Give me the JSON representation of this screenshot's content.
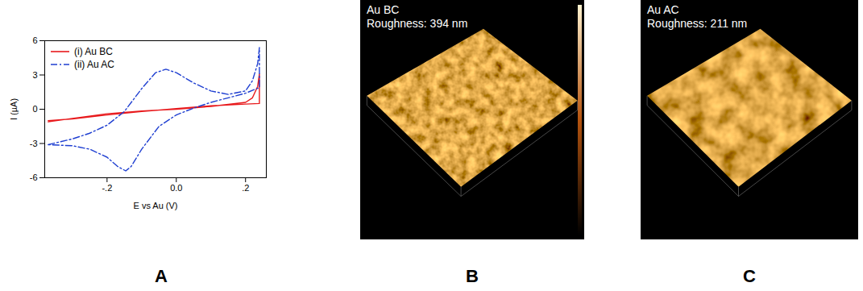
{
  "chart_data": {
    "type": "line",
    "xlabel": "E vs Au (V)",
    "ylabel": "I (µA)",
    "xlim": [
      -0.38,
      0.26
    ],
    "xticks": [
      {
        "value": -0.2,
        "label": "-.2"
      },
      {
        "value": 0,
        "label": "0.0"
      },
      {
        "value": 0.2,
        "label": ".2"
      }
    ],
    "ylim": [
      -6,
      6
    ],
    "yticks": [
      -6,
      -3,
      0,
      3,
      6
    ],
    "legend": "upper left",
    "series": [
      {
        "name": "(i) Au BC",
        "color": "#e8191c",
        "line_style": "solid",
        "x": [
          -0.37,
          -0.3,
          -0.2,
          -0.1,
          0.0,
          0.1,
          0.2,
          0.22,
          0.235,
          0.24,
          0.24,
          0.2,
          0.1,
          0.0,
          -0.1,
          -0.2,
          -0.3,
          -0.37
        ],
        "values": [
          -1.1,
          -0.8,
          -0.4,
          -0.15,
          0.0,
          0.25,
          0.6,
          1.0,
          2.0,
          3.1,
          0.5,
          0.45,
          0.3,
          0.05,
          -0.2,
          -0.5,
          -0.85,
          -1.0
        ]
      },
      {
        "name": "(ii) Au AC",
        "color": "#1f3fd1",
        "line_style": "dashdot",
        "x": [
          -0.37,
          -0.3,
          -0.25,
          -0.2,
          -0.15,
          -0.1,
          -0.06,
          -0.03,
          0.0,
          0.05,
          0.1,
          0.15,
          0.2,
          0.22,
          0.235,
          0.24,
          0.24,
          0.2,
          0.15,
          0.1,
          0.05,
          0.0,
          -0.05,
          -0.1,
          -0.13,
          -0.146,
          -0.17,
          -0.2,
          -0.25,
          -0.3,
          -0.37
        ],
        "values": [
          -3.1,
          -2.6,
          -2.1,
          -1.4,
          -0.2,
          1.8,
          3.2,
          3.5,
          3.2,
          2.3,
          1.6,
          1.3,
          1.6,
          2.5,
          4.0,
          5.4,
          1.9,
          1.4,
          1.0,
          0.6,
          0.1,
          -0.5,
          -1.5,
          -3.5,
          -5.0,
          -5.4,
          -5.0,
          -4.2,
          -3.5,
          -3.2,
          -3.1
        ]
      }
    ]
  },
  "panel_labels": [
    "A",
    "B",
    "C"
  ],
  "images": [
    {
      "title": "Au BC",
      "subtitle": "Roughness: 394 nm"
    },
    {
      "title": "Au AC",
      "subtitle": "Roughness: 211 nm"
    }
  ]
}
